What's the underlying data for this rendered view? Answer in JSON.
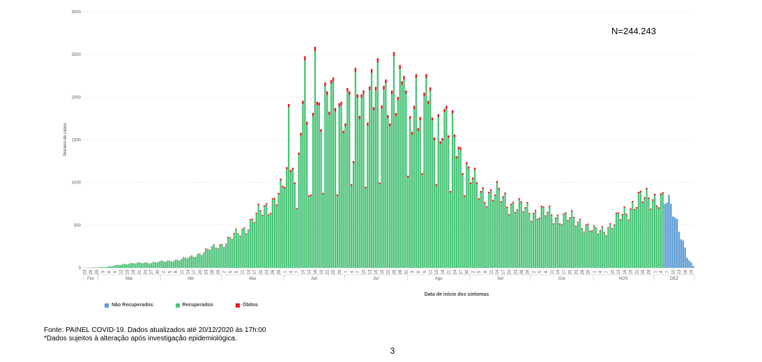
{
  "colors": {
    "nao_recuperados": "#5b9bd5",
    "recuperados": "#4cc57a",
    "obitos": "#e5161b",
    "grid": "#d9d9d9"
  },
  "annotation": "N=244.243",
  "legend": [
    {
      "label": "Não Recuperados",
      "color": "#5b9bd5"
    },
    {
      "label": "Recuperados",
      "color": "#4cc57a"
    },
    {
      "label": "Óbitos",
      "color": "#e5161b"
    }
  ],
  "footer": {
    "line1": "Fonte: PAINEL COVID-19. Dados atualizados até 20/12/2020 às 17h:00",
    "line2": "*Dados sujeitos à alteração após investigação epidemiológica."
  },
  "page_number": "3",
  "chart_data": {
    "type": "bar",
    "stacked": true,
    "ylabel": "Número de casos",
    "xlabel": "Data de início dos sintomas",
    "ylim": [
      0,
      3000
    ],
    "yticks": [
      0,
      500,
      1000,
      1500,
      2000,
      2500,
      3000
    ],
    "grid": true,
    "legend_position": "bottom-left",
    "x_start": "2020-02-23",
    "x_end": "2020-12-20",
    "months": [
      "Fev",
      "Mar",
      "Abr",
      "Mai",
      "Jun",
      "Jul",
      "Ago",
      "Set",
      "Out",
      "NOV",
      "DEZ"
    ],
    "x_tick_labels": [
      "23",
      "26",
      "29",
      "3",
      "6",
      "9",
      "12",
      "15",
      "18",
      "21",
      "24",
      "27",
      "30",
      "2",
      "5",
      "8",
      "11",
      "14",
      "17",
      "20",
      "23",
      "26",
      "29",
      "2",
      "5",
      "8",
      "11",
      "14",
      "17",
      "20",
      "23",
      "26",
      "29",
      "1",
      "4",
      "7",
      "10",
      "13",
      "16",
      "19",
      "22",
      "25",
      "28",
      "1",
      "4",
      "7",
      "10",
      "13",
      "16",
      "19",
      "22",
      "25",
      "28",
      "31",
      "3",
      "6",
      "9",
      "12",
      "15",
      "18",
      "21",
      "24",
      "27",
      "30",
      "2",
      "5",
      "8",
      "11",
      "14",
      "17",
      "20",
      "23",
      "26",
      "29",
      "2",
      "5",
      "8",
      "11",
      "14",
      "17",
      "20",
      "23",
      "26",
      "29",
      "1",
      "4",
      "7",
      "10",
      "13",
      "16",
      "19",
      "22",
      "25",
      "28",
      "1",
      "4",
      "7",
      "10",
      "13",
      "16",
      "19"
    ],
    "series_names": [
      "Não Recuperados",
      "Recuperados",
      "Óbitos"
    ],
    "anchors_total": [
      [
        "2020-02-23",
        0
      ],
      [
        "2020-03-05",
        10
      ],
      [
        "2020-03-15",
        50
      ],
      [
        "2020-03-25",
        60
      ],
      [
        "2020-04-05",
        80
      ],
      [
        "2020-04-15",
        120
      ],
      [
        "2020-04-25",
        220
      ],
      [
        "2020-05-01",
        280
      ],
      [
        "2020-05-10",
        420
      ],
      [
        "2020-05-20",
        650
      ],
      [
        "2020-05-31",
        900
      ],
      [
        "2020-06-05",
        1400
      ],
      [
        "2020-06-15",
        1950
      ],
      [
        "2020-06-25",
        1900
      ],
      [
        "2020-07-05",
        1950
      ],
      [
        "2020-07-15",
        2050
      ],
      [
        "2020-07-25",
        2050
      ],
      [
        "2020-08-05",
        1900
      ],
      [
        "2020-08-15",
        1800
      ],
      [
        "2020-08-25",
        1500
      ],
      [
        "2020-08-31",
        1100
      ],
      [
        "2020-09-05",
        900
      ],
      [
        "2020-09-15",
        850
      ],
      [
        "2020-09-25",
        700
      ],
      [
        "2020-10-05",
        650
      ],
      [
        "2020-10-15",
        600
      ],
      [
        "2020-10-25",
        550
      ],
      [
        "2020-11-01",
        420
      ],
      [
        "2020-11-10",
        500
      ],
      [
        "2020-11-20",
        750
      ],
      [
        "2020-11-30",
        850
      ],
      [
        "2020-12-05",
        780
      ],
      [
        "2020-12-10",
        700
      ],
      [
        "2020-12-14",
        400
      ],
      [
        "2020-12-17",
        120
      ],
      [
        "2020-12-20",
        20
      ]
    ],
    "weekend_dips": [
      [
        "2020-06-06",
        1000
      ],
      [
        "2020-06-07",
        700
      ],
      [
        "2020-06-13",
        850
      ],
      [
        "2020-06-14",
        860
      ],
      [
        "2020-06-20",
        880
      ],
      [
        "2020-06-27",
        860
      ],
      [
        "2020-07-04",
        980
      ],
      [
        "2020-07-05",
        1250
      ],
      [
        "2020-07-11",
        950
      ],
      [
        "2020-07-18",
        1000
      ],
      [
        "2020-07-25",
        1050
      ],
      [
        "2020-08-01",
        1080
      ],
      [
        "2020-08-08",
        1110
      ],
      [
        "2020-08-15",
        980
      ],
      [
        "2020-08-22",
        900
      ],
      [
        "2020-08-29",
        850
      ]
    ],
    "peaks": [
      [
        "2020-06-11",
        2480
      ],
      [
        "2020-06-16",
        2590
      ],
      [
        "2020-06-24",
        2200
      ],
      [
        "2020-07-14",
        2330
      ],
      [
        "2020-07-25",
        2530
      ],
      [
        "2020-07-30",
        2250
      ],
      [
        "2020-08-10",
        2270
      ],
      [
        "2020-08-05",
        2270
      ],
      [
        "2020-08-20",
        1900
      ],
      [
        "2020-06-03",
        1920
      ]
    ],
    "nao_recuperados_from": "2020-12-06",
    "obitos_share": 0.02
  }
}
